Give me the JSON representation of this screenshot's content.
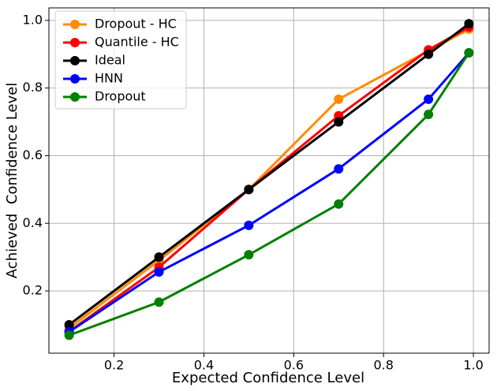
{
  "chart_data": {
    "type": "line",
    "x": [
      0.1,
      0.3,
      0.5,
      0.7,
      0.9,
      0.99
    ],
    "series": [
      {
        "name": "Dropout - HC",
        "color": "#ff8c00",
        "values": [
          0.09,
          0.29,
          0.5,
          0.767,
          0.91,
          0.974
        ]
      },
      {
        "name": "Quantile - HC",
        "color": "#ff0000",
        "values": [
          0.08,
          0.27,
          0.5,
          0.718,
          0.913,
          0.98
        ]
      },
      {
        "name": "Ideal",
        "color": "#000000",
        "values": [
          0.1,
          0.3,
          0.5,
          0.7,
          0.9,
          0.99
        ]
      },
      {
        "name": "HNN",
        "color": "#0000ff",
        "values": [
          0.079,
          0.256,
          0.394,
          0.561,
          0.767,
          0.904
        ]
      },
      {
        "name": "Dropout",
        "color": "#008000",
        "values": [
          0.069,
          0.167,
          0.307,
          0.457,
          0.722,
          0.904
        ]
      }
    ],
    "xlabel": "Expected Confidence Level",
    "ylabel": "Achieved  Confidence Level",
    "xlim": [
      0.055,
      1.035
    ],
    "ylim": [
      0.016,
      1.037
    ],
    "xticks": [
      0.2,
      0.4,
      0.6,
      0.8,
      {
        "value": 1.0,
        "label": "1.0"
      }
    ],
    "yticks": [
      0.2,
      0.4,
      0.6,
      0.8,
      {
        "value": 1.0,
        "label": "1.0"
      }
    ],
    "grid": true,
    "legend": "upper left"
  }
}
